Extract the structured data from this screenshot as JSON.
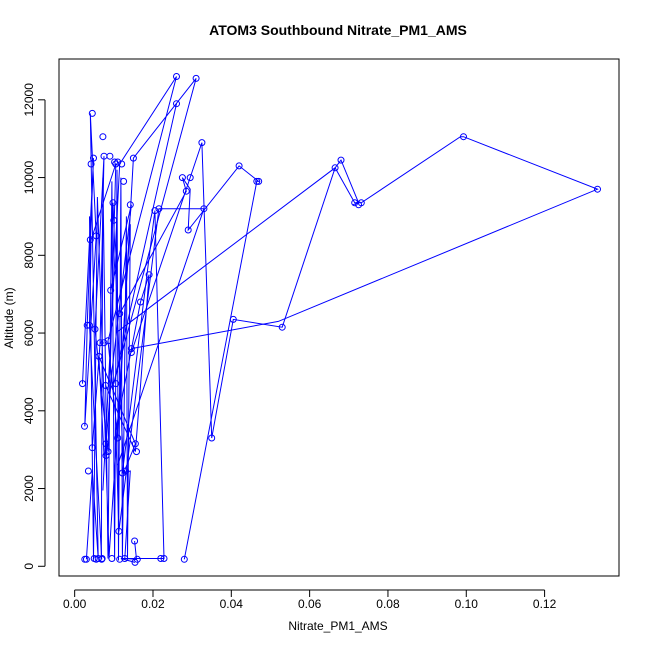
{
  "chart_data": {
    "type": "line",
    "title": "ATOM3 Southbound Nitrate_PM1_AMS",
    "xlabel": "Nitrate_PM1_AMS",
    "ylabel": "Altitude (m)",
    "xlim": [
      -0.004,
      0.139
    ],
    "ylim": [
      -250,
      13050
    ],
    "xticks": [
      0.0,
      0.02,
      0.04,
      0.06,
      0.08,
      0.1,
      0.12
    ],
    "xtick_labels": [
      "0.00",
      "0.02",
      "0.04",
      "0.06",
      "0.08",
      "0.10",
      "0.12"
    ],
    "yticks": [
      0,
      2000,
      4000,
      6000,
      8000,
      10000,
      12000
    ],
    "ytick_labels": [
      "0",
      "2000",
      "4000",
      "6000",
      "8000",
      "10000",
      "12000"
    ],
    "grid": false,
    "line_color": "#0000ff",
    "marker": "open-circle",
    "series": [
      {
        "x": [
          0.002,
          0.0048,
          0.0032,
          0.0026,
          0.0055,
          0.004,
          0.006,
          0.0045,
          0.003
        ],
        "y": [
          4700,
          10500,
          6200,
          3600,
          8500,
          11650,
          200,
          2450,
          180
        ]
      },
      {
        "x": [
          0.0045,
          0.0065,
          0.0075,
          0.0052,
          0.0085,
          0.0105,
          0.0042,
          0.0038,
          0.0069
        ],
        "y": [
          3050,
          5750,
          10550,
          6100,
          2950,
          10350,
          8400,
          6200,
          180
        ]
      },
      {
        "x": [
          0.0072,
          0.0115,
          0.026,
          0.0085,
          0.011,
          0.015,
          0.031,
          0.01,
          0.026
        ],
        "y": [
          1950,
          10350,
          12600,
          5800,
          3300,
          10500,
          12550,
          4700,
          11900
        ]
      },
      {
        "x": [
          0.008,
          0.0095,
          0.0145,
          0.0092,
          0.0098,
          0.0125,
          0.0155,
          0.0062,
          0.0075
        ],
        "y": [
          3150,
          5000,
          9300,
          7100,
          9350,
          2400,
          3150,
          5400,
          2850
        ]
      },
      {
        "x": [
          0.011,
          0.033,
          0.0215,
          0.0113,
          0.0105,
          0.0168,
          0.019,
          0.0155,
          0.0079
        ],
        "y": [
          2600,
          9200,
          9200,
          900,
          3500,
          6800,
          7500,
          2950,
          4650
        ]
      },
      {
        "x": [
          0.0153,
          0.0158,
          0.0128,
          0.0142,
          0.0122,
          0.0205,
          0.0228,
          0.0118,
          0.0154
        ],
        "y": [
          650,
          180,
          200,
          2450,
          2400,
          9150,
          200,
          200,
          100
        ]
      },
      {
        "x": [
          0.0115,
          0.0285,
          0.0275,
          0.0295,
          0.029,
          0.042,
          0.047,
          0.0465,
          0.028
        ],
        "y": [
          6500,
          9650,
          10000,
          9700,
          8650,
          10300,
          9900,
          9900,
          180
        ]
      },
      {
        "x": [
          0.0145,
          0.0325,
          0.035,
          0.0405,
          0.053,
          0.0665,
          0.068,
          0.0725,
          0.071
        ],
        "y": [
          5500,
          10900,
          3300,
          6350,
          6150,
          10250,
          10450,
          9350,
          9300
        ]
      },
      {
        "x": [
          0.0105,
          0.0665,
          0.0715,
          0.0732,
          0.0985,
          0.0993,
          0.1335,
          0.052,
          0.0145
        ],
        "y": [
          6000,
          10250,
          9350,
          9350,
          11050,
          11050,
          9700,
          6300,
          5600
        ]
      },
      {
        "x": [
          0.0068,
          0.0072,
          0.0085,
          0.0095,
          0.0102,
          0.0108,
          0.0112,
          0.0118,
          0.0122,
          0.0132,
          0.0135,
          0.0142,
          0.0088,
          0.0058,
          0.0048,
          0.0038
        ],
        "y": [
          180,
          10000,
          200,
          9900,
          180,
          10200,
          150,
          10000,
          200,
          9000,
          180,
          8800,
          250,
          9500,
          180,
          9000
        ]
      }
    ],
    "points": {
      "x": [
        0.002,
        0.0025,
        0.0026,
        0.003,
        0.0032,
        0.0035,
        0.0038,
        0.004,
        0.0042,
        0.0045,
        0.0045,
        0.0048,
        0.005,
        0.0052,
        0.0055,
        0.0055,
        0.006,
        0.0062,
        0.0065,
        0.0069,
        0.007,
        0.0072,
        0.0075,
        0.0075,
        0.0079,
        0.008,
        0.008,
        0.0085,
        0.0085,
        0.009,
        0.0092,
        0.0095,
        0.0098,
        0.01,
        0.0102,
        0.0105,
        0.0105,
        0.011,
        0.011,
        0.0113,
        0.0115,
        0.0115,
        0.012,
        0.0122,
        0.0125,
        0.0128,
        0.013,
        0.0142,
        0.0145,
        0.0145,
        0.015,
        0.0153,
        0.0154,
        0.0155,
        0.0158,
        0.016,
        0.0168,
        0.019,
        0.0205,
        0.0215,
        0.022,
        0.0228,
        0.026,
        0.026,
        0.0275,
        0.028,
        0.0285,
        0.029,
        0.0295,
        0.031,
        0.0325,
        0.033,
        0.035,
        0.0405,
        0.042,
        0.0465,
        0.047,
        0.053,
        0.0665,
        0.068,
        0.0715,
        0.0725,
        0.0732,
        0.0993,
        0.1335
      ],
      "y": [
        4700,
        3600,
        180,
        180,
        6200,
        2450,
        6200,
        8400,
        10350,
        11650,
        3050,
        10500,
        200,
        6100,
        8500,
        180,
        200,
        5400,
        5750,
        180,
        200,
        11050,
        10550,
        5750,
        4650,
        3150,
        2850,
        2950,
        5800,
        10550,
        7100,
        200,
        9350,
        8900,
        10400,
        10350,
        4700,
        3300,
        10400,
        900,
        180,
        6500,
        10350,
        2400,
        9900,
        200,
        2450,
        9300,
        5500,
        5600,
        10500,
        650,
        100,
        3150,
        2950,
        180,
        6800,
        7500,
        9150,
        9200,
        200,
        200,
        12600,
        11900,
        10000,
        180,
        9650,
        8650,
        10000,
        12550,
        10900,
        9200,
        3300,
        6350,
        10300,
        9900,
        9900,
        6150,
        10250,
        10450,
        9350,
        9300,
        9350,
        11050,
        9700
      ]
    }
  }
}
